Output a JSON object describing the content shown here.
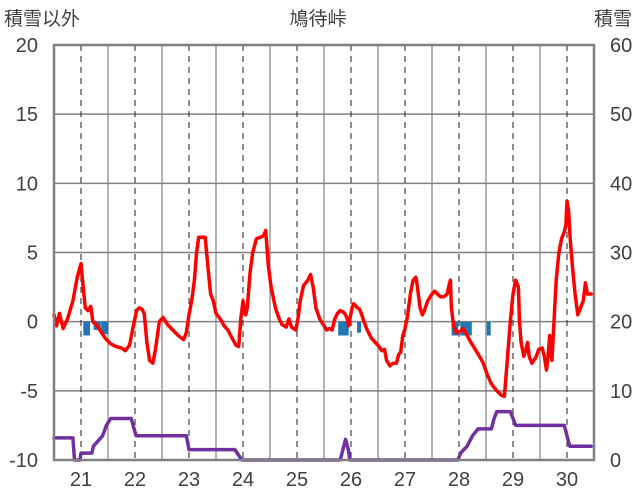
{
  "chart_data": {
    "type": "line",
    "title": "鳩待峠",
    "left_axis_label": "積雪以外",
    "right_axis_label": "積雪",
    "x_ticks": [
      "21",
      "22",
      "23",
      "24",
      "25",
      "26",
      "27",
      "28",
      "29",
      "30"
    ],
    "x_range": [
      20.5,
      30.5
    ],
    "left_ylim": [
      -10,
      20
    ],
    "left_ticks": [
      -10,
      -5,
      0,
      5,
      10,
      15,
      20
    ],
    "right_ylim": [
      0,
      60
    ],
    "right_ticks": [
      0,
      10,
      20,
      30,
      40,
      50,
      60
    ],
    "grid": {
      "horizontal": "solid",
      "vertical_day": "solid",
      "vertical_midday": "dashed"
    },
    "series": [
      {
        "axis": "left",
        "color": "#ff0000",
        "points": [
          [
            20.5,
            0.5
          ],
          [
            20.55,
            -0.3
          ],
          [
            20.6,
            0.6
          ],
          [
            20.67,
            -0.5
          ],
          [
            20.75,
            0.2
          ],
          [
            20.85,
            1.5
          ],
          [
            20.93,
            3.2
          ],
          [
            21.0,
            4.2
          ],
          [
            21.04,
            2.5
          ],
          [
            21.08,
            1.0
          ],
          [
            21.13,
            0.8
          ],
          [
            21.18,
            1.1
          ],
          [
            21.22,
            0.0
          ],
          [
            21.3,
            -0.3
          ],
          [
            21.38,
            -0.8
          ],
          [
            21.45,
            -1.2
          ],
          [
            21.55,
            -1.6
          ],
          [
            21.65,
            -1.8
          ],
          [
            21.75,
            -1.9
          ],
          [
            21.82,
            -2.1
          ],
          [
            21.9,
            -1.7
          ],
          [
            21.96,
            -0.5
          ],
          [
            22.03,
            0.8
          ],
          [
            22.08,
            1.0
          ],
          [
            22.13,
            0.9
          ],
          [
            22.17,
            0.6
          ],
          [
            22.22,
            -1.5
          ],
          [
            22.27,
            -2.8
          ],
          [
            22.33,
            -3.0
          ],
          [
            22.38,
            -2.0
          ],
          [
            22.45,
            0.0
          ],
          [
            22.52,
            0.3
          ],
          [
            22.6,
            -0.2
          ],
          [
            22.7,
            -0.6
          ],
          [
            22.8,
            -1.0
          ],
          [
            22.9,
            -1.3
          ],
          [
            22.95,
            -0.8
          ],
          [
            23.0,
            0.5
          ],
          [
            23.05,
            1.5
          ],
          [
            23.1,
            3.0
          ],
          [
            23.14,
            5.0
          ],
          [
            23.18,
            6.1
          ],
          [
            23.3,
            6.1
          ],
          [
            23.35,
            4.0
          ],
          [
            23.4,
            2.0
          ],
          [
            23.45,
            1.5
          ],
          [
            23.5,
            0.6
          ],
          [
            23.58,
            0.2
          ],
          [
            23.65,
            -0.3
          ],
          [
            23.72,
            -0.6
          ],
          [
            23.8,
            -1.2
          ],
          [
            23.87,
            -1.7
          ],
          [
            23.92,
            -1.8
          ],
          [
            23.96,
            0.2
          ],
          [
            24.0,
            1.5
          ],
          [
            24.05,
            0.5
          ],
          [
            24.08,
            1.0
          ],
          [
            24.13,
            3.5
          ],
          [
            24.18,
            5.0
          ],
          [
            24.25,
            6.0
          ],
          [
            24.38,
            6.2
          ],
          [
            24.42,
            6.6
          ],
          [
            24.47,
            4.0
          ],
          [
            24.52,
            2.5
          ],
          [
            24.6,
            1.0
          ],
          [
            24.67,
            0.2
          ],
          [
            24.72,
            -0.2
          ],
          [
            24.8,
            -0.4
          ],
          [
            24.85,
            0.2
          ],
          [
            24.9,
            -0.4
          ],
          [
            24.98,
            -0.6
          ],
          [
            25.02,
            0.3
          ],
          [
            25.06,
            1.5
          ],
          [
            25.12,
            2.6
          ],
          [
            25.2,
            3.0
          ],
          [
            25.25,
            3.4
          ],
          [
            25.3,
            2.5
          ],
          [
            25.35,
            1.0
          ],
          [
            25.42,
            0.2
          ],
          [
            25.5,
            -0.3
          ],
          [
            25.55,
            -0.6
          ],
          [
            25.6,
            -0.5
          ],
          [
            25.65,
            -0.6
          ],
          [
            25.7,
            0.2
          ],
          [
            25.75,
            0.6
          ],
          [
            25.8,
            0.8
          ],
          [
            25.86,
            0.7
          ],
          [
            25.9,
            0.5
          ],
          [
            25.93,
            0.2
          ],
          [
            25.96,
            -0.3
          ],
          [
            25.98,
            0.2
          ],
          [
            26.02,
            1.0
          ],
          [
            26.05,
            1.3
          ],
          [
            26.12,
            1.0
          ],
          [
            26.16,
            0.9
          ],
          [
            26.2,
            0.5
          ],
          [
            26.24,
            0.0
          ],
          [
            26.3,
            -0.6
          ],
          [
            26.38,
            -1.2
          ],
          [
            26.45,
            -1.5
          ],
          [
            26.52,
            -1.8
          ],
          [
            26.57,
            -2.1
          ],
          [
            26.62,
            -2.0
          ],
          [
            26.66,
            -2.8
          ],
          [
            26.72,
            -3.2
          ],
          [
            26.78,
            -3.0
          ],
          [
            26.84,
            -3.0
          ],
          [
            26.88,
            -2.4
          ],
          [
            26.92,
            -2.2
          ],
          [
            26.96,
            -1.0
          ],
          [
            27.0,
            -0.5
          ],
          [
            27.05,
            0.5
          ],
          [
            27.1,
            2.0
          ],
          [
            27.15,
            3.0
          ],
          [
            27.2,
            3.2
          ],
          [
            27.22,
            2.8
          ],
          [
            27.28,
            1.0
          ],
          [
            27.32,
            0.5
          ],
          [
            27.36,
            0.8
          ],
          [
            27.42,
            1.5
          ],
          [
            27.5,
            2.0
          ],
          [
            27.55,
            2.2
          ],
          [
            27.6,
            2.0
          ],
          [
            27.66,
            1.8
          ],
          [
            27.72,
            1.8
          ],
          [
            27.78,
            2.0
          ],
          [
            27.82,
            2.7
          ],
          [
            27.84,
            3.0
          ],
          [
            27.86,
            1.0
          ],
          [
            27.9,
            -0.3
          ],
          [
            27.95,
            -0.8
          ],
          [
            28.02,
            -0.7
          ],
          [
            28.08,
            -0.5
          ],
          [
            28.15,
            -1.0
          ],
          [
            28.22,
            -1.5
          ],
          [
            28.3,
            -2.0
          ],
          [
            28.38,
            -2.5
          ],
          [
            28.45,
            -3.0
          ],
          [
            28.52,
            -3.8
          ],
          [
            28.6,
            -4.5
          ],
          [
            28.7,
            -5.0
          ],
          [
            28.78,
            -5.3
          ],
          [
            28.84,
            -5.4
          ],
          [
            28.86,
            -4.5
          ],
          [
            28.9,
            -2.5
          ],
          [
            28.95,
            0.0
          ],
          [
            29.0,
            2.0
          ],
          [
            29.05,
            3.0
          ],
          [
            29.1,
            2.5
          ],
          [
            29.12,
            0.0
          ],
          [
            29.15,
            -1.5
          ],
          [
            29.2,
            -2.5
          ],
          [
            29.24,
            -2.0
          ],
          [
            29.27,
            -1.5
          ],
          [
            29.3,
            -2.5
          ],
          [
            29.35,
            -3.0
          ],
          [
            29.42,
            -2.6
          ],
          [
            29.48,
            -2.0
          ],
          [
            29.54,
            -1.9
          ],
          [
            29.58,
            -2.5
          ],
          [
            29.62,
            -3.5
          ],
          [
            29.65,
            -2.5
          ],
          [
            29.68,
            -1.0
          ],
          [
            29.72,
            -2.8
          ],
          [
            29.76,
            0.0
          ],
          [
            29.8,
            3.0
          ],
          [
            29.85,
            5.0
          ],
          [
            29.9,
            6.0
          ],
          [
            29.95,
            6.5
          ],
          [
            29.98,
            7.0
          ],
          [
            30.0,
            8.7
          ],
          [
            30.03,
            8.0
          ],
          [
            30.06,
            6.0
          ],
          [
            30.1,
            4.0
          ],
          [
            30.15,
            2.0
          ],
          [
            30.2,
            0.5
          ],
          [
            30.25,
            1.0
          ],
          [
            30.3,
            1.5
          ],
          [
            30.34,
            2.8
          ],
          [
            30.38,
            2.0
          ],
          [
            30.45,
            2.0
          ]
        ]
      },
      {
        "axis": "right",
        "color": "#7030a0",
        "points": [
          [
            20.5,
            3.2
          ],
          [
            20.85,
            3.2
          ],
          [
            20.88,
            0.0
          ],
          [
            20.98,
            0.0
          ],
          [
            21.0,
            1.0
          ],
          [
            21.2,
            1.0
          ],
          [
            21.23,
            2.0
          ],
          [
            21.4,
            3.5
          ],
          [
            21.47,
            5.0
          ],
          [
            21.55,
            6.0
          ],
          [
            21.93,
            6.0
          ],
          [
            22.02,
            3.5
          ],
          [
            22.95,
            3.5
          ],
          [
            23.0,
            1.5
          ],
          [
            23.85,
            1.5
          ],
          [
            23.98,
            0.0
          ],
          [
            25.8,
            0.0
          ],
          [
            25.85,
            1.5
          ],
          [
            25.9,
            3.0
          ],
          [
            25.95,
            1.5
          ],
          [
            25.98,
            0.0
          ],
          [
            27.98,
            0.0
          ],
          [
            28.03,
            1.0
          ],
          [
            28.15,
            2.0
          ],
          [
            28.25,
            3.5
          ],
          [
            28.35,
            4.5
          ],
          [
            28.6,
            4.5
          ],
          [
            28.65,
            6.0
          ],
          [
            28.7,
            7.0
          ],
          [
            28.95,
            7.0
          ],
          [
            29.05,
            5.0
          ],
          [
            29.95,
            5.0
          ],
          [
            30.05,
            2.0
          ],
          [
            30.45,
            2.0
          ]
        ]
      },
      {
        "axis": "left",
        "type": "bar",
        "color": "#1f77b4",
        "bars": [
          [
            21.08,
            -1.0
          ],
          [
            21.13,
            -1.0
          ],
          [
            21.27,
            -0.6
          ],
          [
            21.33,
            -0.6
          ],
          [
            21.41,
            -0.9
          ],
          [
            21.47,
            -0.9
          ],
          [
            25.8,
            -1.0
          ],
          [
            25.86,
            -1.0
          ],
          [
            25.92,
            -1.0
          ],
          [
            26.15,
            -0.8
          ],
          [
            27.9,
            -1.0
          ],
          [
            27.95,
            -1.0
          ],
          [
            28.06,
            -1.0
          ],
          [
            28.13,
            -1.0
          ],
          [
            28.2,
            -1.0
          ],
          [
            28.55,
            -1.0
          ]
        ]
      }
    ]
  }
}
